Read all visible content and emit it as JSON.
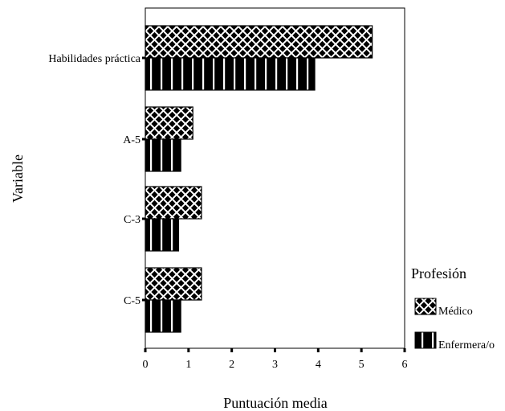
{
  "chart_data": {
    "type": "bar",
    "orientation": "horizontal",
    "categories": [
      "Habilidades práctica",
      "A-5",
      "C-3",
      "C-5"
    ],
    "series": [
      {
        "name": "Médico",
        "values": [
          5.25,
          1.1,
          1.3,
          1.3
        ],
        "pattern": "crosshatch"
      },
      {
        "name": "Enfermera/o",
        "values": [
          3.92,
          0.82,
          0.77,
          0.82
        ],
        "pattern": "vertical-stripes"
      }
    ],
    "xlabel": "Puntuación media",
    "ylabel": "Variable",
    "xlim": [
      0,
      6
    ],
    "xticks": [
      "0",
      "1",
      "2",
      "3",
      "4",
      "5",
      "6"
    ],
    "legend_title": "Profesión",
    "legend_position": "right",
    "grid": false,
    "colors": {
      "bar_fill": "#000000",
      "pattern_line": "#ffffff",
      "axis": "#000000"
    }
  }
}
